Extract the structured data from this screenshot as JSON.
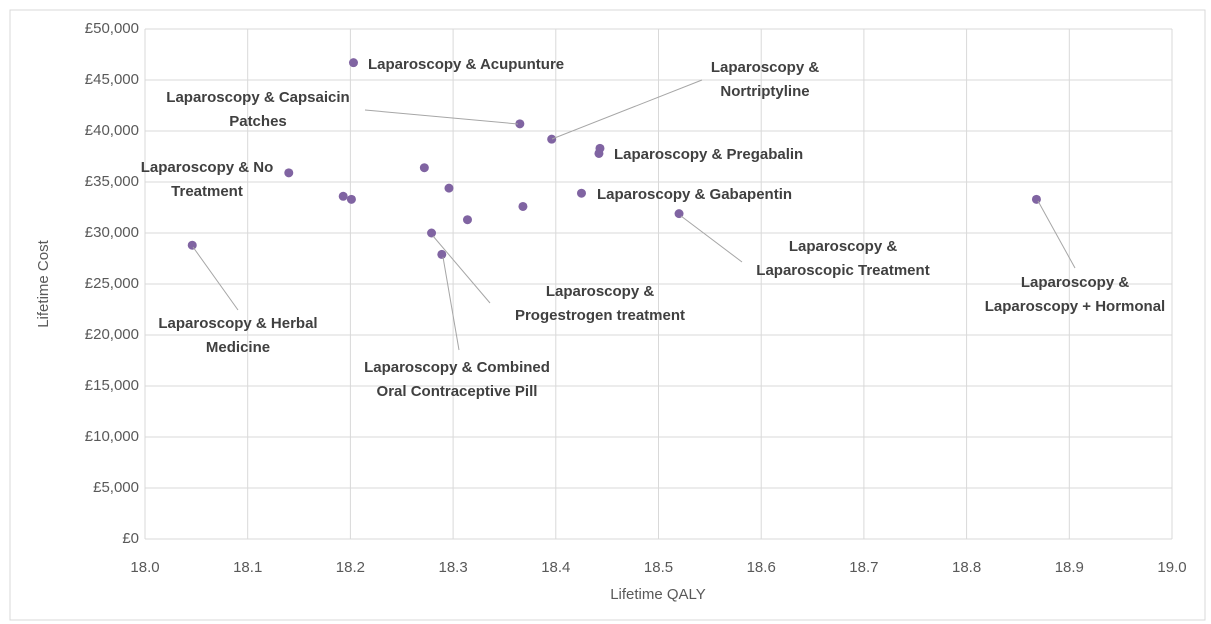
{
  "chart_data": {
    "type": "scatter",
    "x_label": "Lifetime QALY",
    "y_label": "Lifetime Cost",
    "color": "#8064a2",
    "grid": true,
    "xlim": [
      18.0,
      19.0
    ],
    "xticks": [
      {
        "value": 18.0,
        "label": "18.0"
      },
      18.1,
      18.2,
      18.3,
      18.4,
      18.5,
      18.6,
      18.7,
      18.8,
      18.9,
      {
        "value": 19.0,
        "label": "19.0"
      }
    ],
    "ylim": [
      0,
      50000
    ],
    "yticks": [
      {
        "value": 0,
        "label": "£0"
      },
      {
        "value": 5000,
        "label": "£5,000"
      },
      {
        "value": 10000,
        "label": "£10,000"
      },
      {
        "value": 15000,
        "label": "£15,000"
      },
      {
        "value": 20000,
        "label": "£20,000"
      },
      {
        "value": 25000,
        "label": "£25,000"
      },
      {
        "value": 30000,
        "label": "£30,000"
      },
      {
        "value": 35000,
        "label": "£35,000"
      },
      {
        "value": 40000,
        "label": "£40,000"
      },
      {
        "value": 45000,
        "label": "£45,000"
      },
      {
        "value": 50000,
        "label": "£50,000"
      }
    ],
    "x": [
      18.046,
      18.14,
      18.193,
      18.201,
      18.203,
      18.272,
      18.279,
      18.289,
      18.296,
      18.314,
      18.365,
      18.368,
      18.396,
      18.425,
      18.443,
      18.442,
      18.52,
      18.868
    ],
    "values": [
      28800,
      35900,
      33600,
      33300,
      46700,
      36400,
      30000,
      27900,
      34400,
      31300,
      40700,
      32600,
      39200,
      33900,
      38300,
      37800,
      31900,
      33300
    ],
    "annotations": [
      [
        "Laparoscopy & Acupunture"
      ],
      [
        "Laparoscopy & Capsaicin",
        "Patches"
      ],
      [
        "Laparoscopy &",
        "Nortriptyline"
      ],
      [
        "Laparoscopy & Pregabalin"
      ],
      [
        "Laparoscopy & No",
        "Treatment"
      ],
      [
        "Laparoscopy & Gabapentin"
      ],
      [
        "Laparoscopy &",
        "Laparoscopic Treatment"
      ],
      [
        "Laparoscopy &",
        "Laparoscopy + Hormonal"
      ],
      [
        "Laparoscopy & Herbal",
        "Medicine"
      ],
      [
        "Laparoscopy &",
        "Progestrogen treatment"
      ],
      [
        "Laparoscopy & Combined",
        "Oral Contraceptive Pill"
      ]
    ]
  }
}
